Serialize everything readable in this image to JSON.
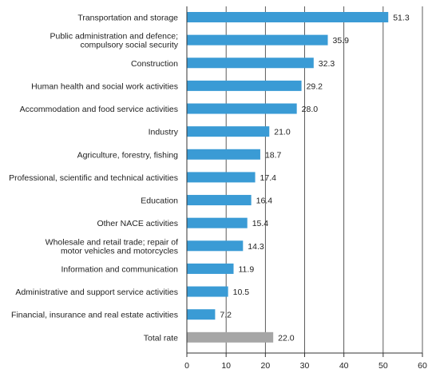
{
  "chart_data": {
    "type": "bar",
    "orientation": "horizontal",
    "categories": [
      [
        "Transportation and storage"
      ],
      [
        "Public administration and defence;",
        "compulsory social security"
      ],
      [
        "Construction"
      ],
      [
        "Human health and social work activities"
      ],
      [
        "Accommodation and food service activities"
      ],
      [
        "Industry"
      ],
      [
        "Agriculture, forestry, fishing"
      ],
      [
        "Professional, scientific and technical activities"
      ],
      [
        "Education"
      ],
      [
        "Other NACE activities"
      ],
      [
        "Wholesale and retail trade; repair of",
        "motor vehicles and motorcycles"
      ],
      [
        "Information and communication"
      ],
      [
        "Administrative and support service activities"
      ],
      [
        "Financial, insurance and real estate activities"
      ],
      [
        "Total rate"
      ]
    ],
    "values": [
      51.3,
      35.9,
      32.3,
      29.2,
      28.0,
      21.0,
      18.7,
      17.4,
      16.4,
      15.4,
      14.3,
      11.9,
      10.5,
      7.2,
      22.0
    ],
    "value_labels": [
      "51.3",
      "35.9",
      "32.3",
      "29.2",
      "28.0",
      "21.0",
      "18.7",
      "17.4",
      "16.4",
      "15.4",
      "14.3",
      "11.9",
      "10.5",
      "7.2",
      "22.0"
    ],
    "highlight_index": 14,
    "xlim": [
      0,
      60
    ],
    "xticks": [
      0,
      10,
      20,
      30,
      40,
      50,
      60
    ],
    "grid": "vertical",
    "colors": {
      "bar": "#3a9bd5",
      "total_bar": "#a6a6a6",
      "grid": "#333333",
      "text": "#222222"
    }
  }
}
